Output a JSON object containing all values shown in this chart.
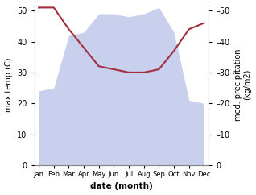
{
  "months": [
    "Jan",
    "Feb",
    "Mar",
    "Apr",
    "May",
    "Jun",
    "Jul",
    "Aug",
    "Sep",
    "Oct",
    "Nov",
    "Dec"
  ],
  "month_positions": [
    0,
    1,
    2,
    3,
    4,
    5,
    6,
    7,
    8,
    9,
    10,
    11
  ],
  "max_temp": [
    24,
    25,
    42,
    43,
    49,
    49,
    48,
    49,
    51,
    43,
    21,
    20
  ],
  "precipitation": [
    51,
    51,
    44,
    38,
    32,
    31,
    30,
    30,
    31,
    37,
    44,
    46
  ],
  "temp_fill_color": "#c8d0ee",
  "precip_color": "#a03040",
  "ylim_left": [
    0,
    52
  ],
  "ylim_right": [
    0,
    52
  ],
  "ylabel_left": "max temp (C)",
  "ylabel_right": "med. precipitation\n(kg/m2)",
  "xlabel": "date (month)",
  "left_yticks": [
    0,
    10,
    20,
    30,
    40,
    50
  ],
  "right_yticks": [
    0,
    10,
    20,
    30,
    40,
    50
  ],
  "bg_color": "#ffffff",
  "plot_bg_color": "#ffffff"
}
